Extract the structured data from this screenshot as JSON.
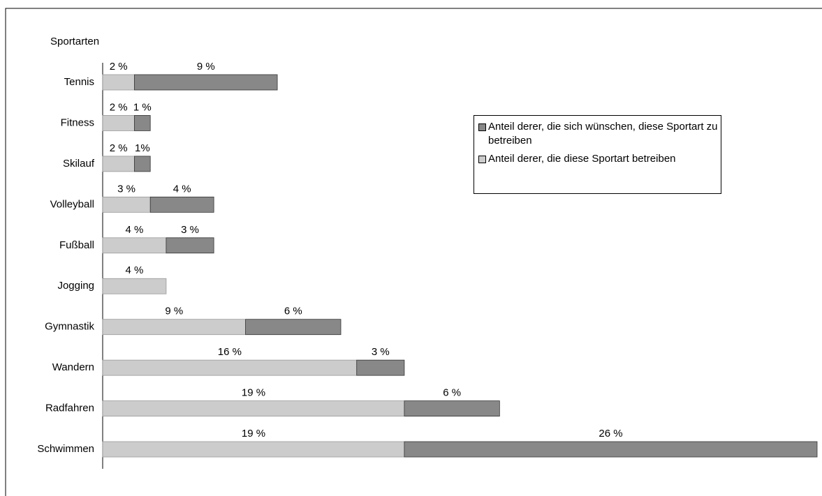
{
  "chart_data": {
    "type": "bar",
    "orientation": "horizontal",
    "stacked": true,
    "y_label": "Sportarten",
    "categories": [
      "Tennis",
      "Fitness",
      "Skilauf",
      "Volleyball",
      "Fußball",
      "Jogging",
      "Gymnastik",
      "Wandern",
      "Radfahren",
      "Schwimmen"
    ],
    "series": [
      {
        "name": "Anteil derer, die diese Sportart betreiben",
        "color": "#cccccc",
        "values": [
          2,
          2,
          2,
          3,
          4,
          4,
          9,
          16,
          19,
          19
        ],
        "value_labels": [
          "2 %",
          "2 %",
          "2 %",
          "3 %",
          "4 %",
          "4 %",
          "9 %",
          "16 %",
          "19 %",
          "19 %"
        ]
      },
      {
        "name": "Anteil derer, die sich wünschen, diese Sportart zu betreiben",
        "color": "#888888",
        "values": [
          9,
          1,
          1,
          4,
          3,
          null,
          6,
          3,
          6,
          26
        ],
        "value_labels": [
          "9 %",
          "1 %",
          "1%",
          "4 %",
          "3 %",
          null,
          "6 %",
          "3 %",
          "6 %",
          "26 %"
        ]
      }
    ],
    "legend": "right"
  }
}
